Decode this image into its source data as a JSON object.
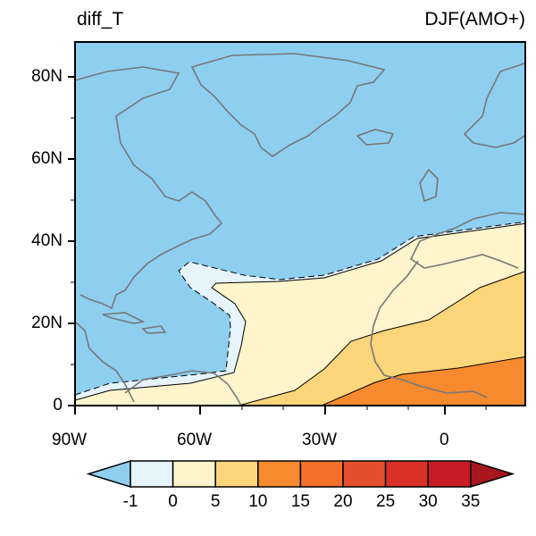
{
  "title_left": "diff_T",
  "title_right": "DJF(AMO+)",
  "y_ticks": [
    "80N",
    "60N",
    "40N",
    "20N",
    "0"
  ],
  "x_ticks": [
    "90W",
    "60W",
    "30W",
    "0"
  ],
  "colorbar": {
    "labels": [
      "-1",
      "0",
      "5",
      "10",
      "15",
      "20",
      "25",
      "30",
      "35"
    ],
    "colors": [
      "#8ecff0",
      "#e6f4fc",
      "#fff4cc",
      "#fdd57a",
      "#f68a2e",
      "#f3712a",
      "#e34f2c",
      "#da3127",
      "#c91d26",
      "#a8171d"
    ]
  },
  "contour_colors": {
    "below_-1": "#8ecff0",
    "-1_0": "#e6f4fc",
    "0_5": "#fff4cc",
    "5_10": "#fdd57a",
    "10_15": "#f68a2e"
  }
}
